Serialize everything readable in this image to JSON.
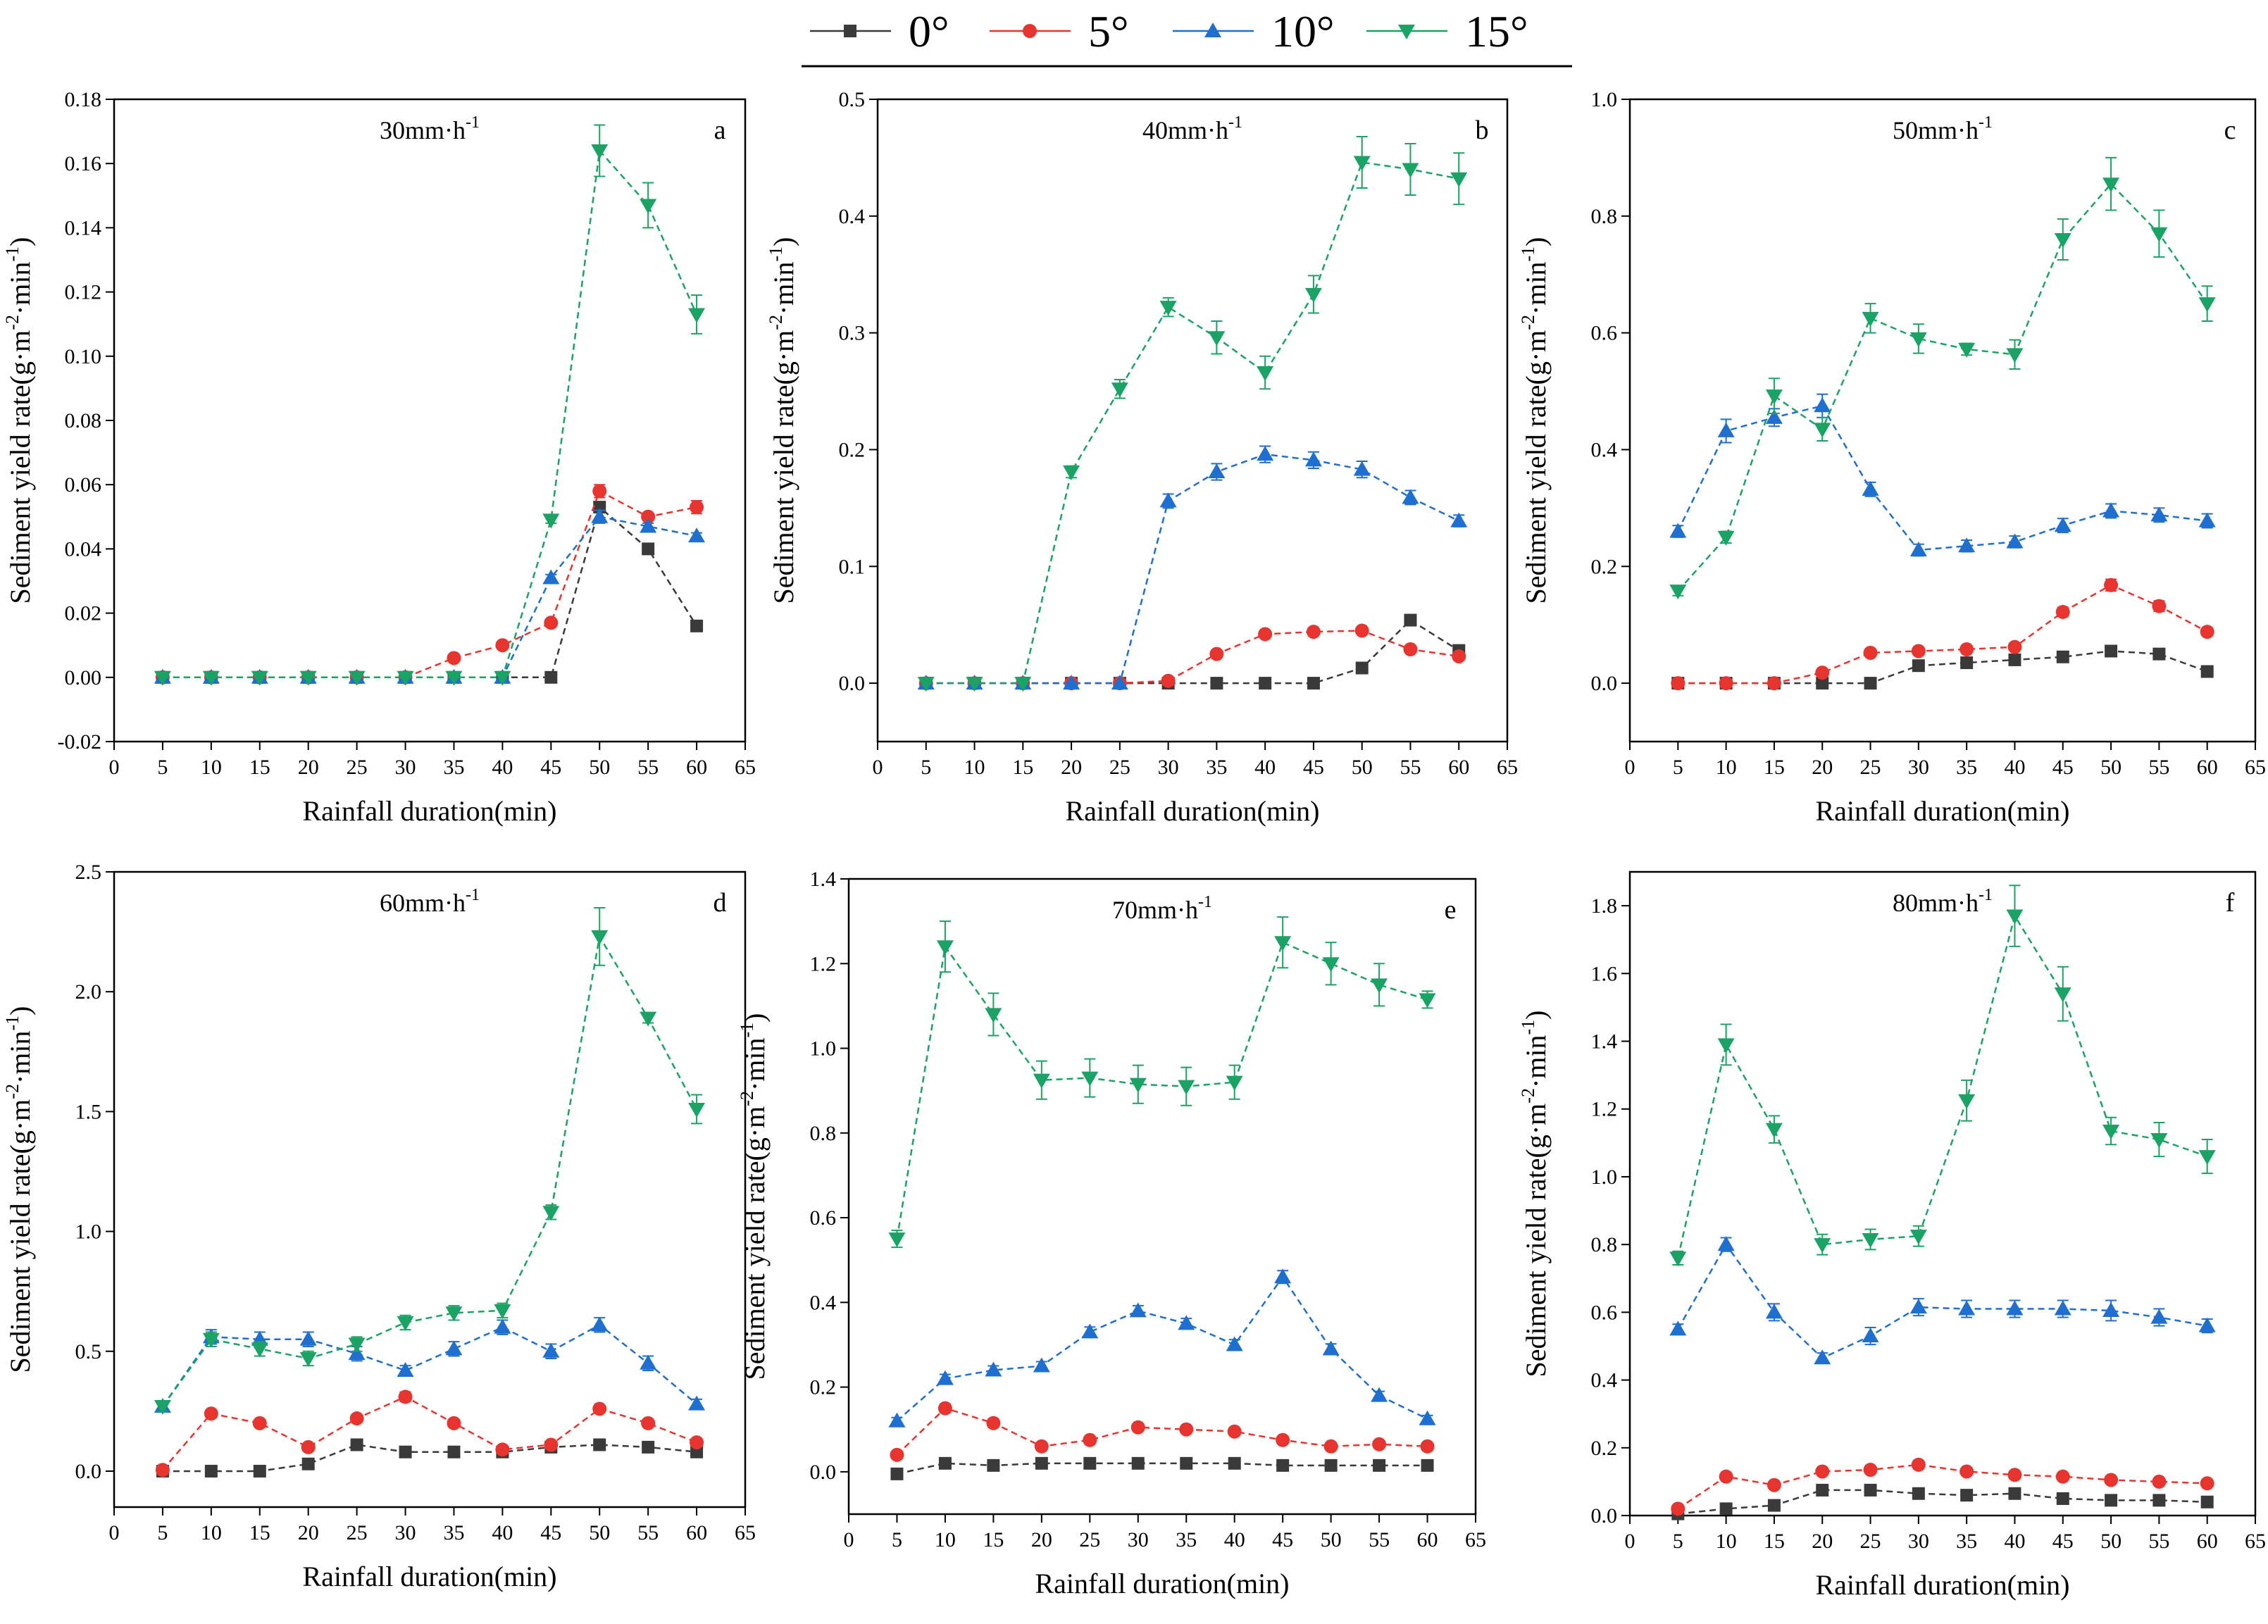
{
  "figure": {
    "legend": {
      "entries": [
        {
          "name": "0°",
          "color": "#3a3a3a",
          "marker": "square"
        },
        {
          "name": "5°",
          "color": "#e8342f",
          "marker": "circle"
        },
        {
          "name": "10°",
          "color": "#1f6fd1",
          "marker": "triangle-up"
        },
        {
          "name": "15°",
          "color": "#1aa364",
          "marker": "triangle-down"
        }
      ]
    }
  },
  "chart_data": [
    {
      "type": "line",
      "panel": "a",
      "title": "30mm·h",
      "title_sup": "-1",
      "xlabel": "Rainfall duration(min)",
      "ylabel": "Sediment yield rate(g·m",
      "ylabel_sup1": "-2",
      "ylabel_mid": "·min",
      "ylabel_sup2": "-1",
      "ylabel_end": ")",
      "xlim": [
        0,
        65
      ],
      "ylim": [
        -0.02,
        0.18
      ],
      "xticks": [
        0,
        5,
        10,
        15,
        20,
        25,
        30,
        35,
        40,
        45,
        50,
        55,
        60,
        65
      ],
      "yticks": [
        -0.02,
        0.0,
        0.02,
        0.04,
        0.06,
        0.08,
        0.1,
        0.12,
        0.14,
        0.16,
        0.18
      ],
      "ytick_labels": [
        "-0.02",
        "0.00",
        "0.02",
        "0.04",
        "0.06",
        "0.08",
        "0.10",
        "0.12",
        "0.14",
        "0.16",
        "0.18"
      ],
      "x": [
        5,
        10,
        15,
        20,
        25,
        30,
        35,
        40,
        45,
        50,
        55,
        60
      ],
      "series": [
        {
          "name": "0°",
          "values": [
            0,
            0,
            0,
            0,
            0,
            0,
            0,
            0,
            0,
            0.053,
            0.04,
            0.016
          ],
          "err": [
            0,
            0,
            0,
            0,
            0,
            0,
            0,
            0,
            0,
            0.001,
            0.001,
            0.001
          ]
        },
        {
          "name": "5°",
          "values": [
            0,
            0,
            0,
            0,
            0,
            0,
            0.006,
            0.01,
            0.017,
            0.058,
            0.05,
            0.053
          ],
          "err": [
            0,
            0,
            0,
            0,
            0,
            0,
            0.001,
            0.001,
            0.001,
            0.002,
            0.001,
            0.002
          ]
        },
        {
          "name": "10°",
          "values": [
            0,
            0,
            0,
            0,
            0,
            0,
            0,
            0,
            0.031,
            0.05,
            0.047,
            0.044
          ],
          "err": [
            0,
            0,
            0,
            0,
            0,
            0,
            0,
            0,
            0.001,
            0.002,
            0.001,
            0.001
          ]
        },
        {
          "name": "15°",
          "values": [
            0,
            0,
            0,
            0,
            0,
            0,
            0,
            0,
            0.049,
            0.164,
            0.147,
            0.113
          ],
          "err": [
            0,
            0,
            0,
            0,
            0,
            0,
            0,
            0,
            0.001,
            0.008,
            0.007,
            0.006
          ]
        }
      ]
    },
    {
      "type": "line",
      "panel": "b",
      "title": "40mm·h",
      "title_sup": "-1",
      "xlabel": "Rainfall duration(min)",
      "ylabel": "Sediment yield rate(g·m",
      "ylabel_sup1": "-2",
      "ylabel_mid": "·min",
      "ylabel_sup2": "-1",
      "ylabel_end": ")",
      "xlim": [
        0,
        65
      ],
      "ylim": [
        -0.05,
        0.5
      ],
      "xticks": [
        0,
        5,
        10,
        15,
        20,
        25,
        30,
        35,
        40,
        45,
        50,
        55,
        60,
        65
      ],
      "yticks": [
        0.0,
        0.1,
        0.2,
        0.3,
        0.4,
        0.5
      ],
      "ytick_labels": [
        "0.0",
        "0.1",
        "0.2",
        "0.3",
        "0.4",
        "0.5"
      ],
      "x": [
        5,
        10,
        15,
        20,
        25,
        30,
        35,
        40,
        45,
        50,
        55,
        60
      ],
      "series": [
        {
          "name": "0°",
          "values": [
            0,
            0,
            0,
            0,
            0,
            0,
            0,
            0,
            0,
            0.013,
            0.054,
            0.028
          ],
          "err": [
            0,
            0,
            0,
            0,
            0,
            0,
            0,
            0,
            0,
            0.002,
            0.003,
            0.002
          ]
        },
        {
          "name": "5°",
          "values": [
            0,
            0,
            0,
            0,
            0,
            0.002,
            0.025,
            0.042,
            0.044,
            0.045,
            0.029,
            0.023
          ],
          "err": [
            0,
            0,
            0,
            0,
            0,
            0,
            0.002,
            0.002,
            0.002,
            0.002,
            0.002,
            0.002
          ]
        },
        {
          "name": "10°",
          "values": [
            0,
            0,
            0,
            0,
            0,
            0.156,
            0.181,
            0.196,
            0.191,
            0.183,
            0.159,
            0.139
          ],
          "err": [
            0,
            0,
            0,
            0,
            0,
            0.006,
            0.007,
            0.007,
            0.007,
            0.007,
            0.006,
            0.005
          ]
        },
        {
          "name": "15°",
          "values": [
            0,
            0,
            0,
            0.181,
            0.252,
            0.322,
            0.296,
            0.266,
            0.333,
            0.446,
            0.44,
            0.432
          ],
          "err": [
            0,
            0,
            0,
            0.005,
            0.008,
            0.008,
            0.014,
            0.014,
            0.016,
            0.022,
            0.022,
            0.022
          ]
        }
      ]
    },
    {
      "type": "line",
      "panel": "c",
      "title": "50mm·h",
      "title_sup": "-1",
      "xlabel": "Rainfall duration(min)",
      "ylabel": "Sediment yield rate(g·m",
      "ylabel_sup1": "-2",
      "ylabel_mid": "·min",
      "ylabel_sup2": "-1",
      "ylabel_end": ")",
      "xlim": [
        0,
        65
      ],
      "ylim": [
        -0.1,
        1.0
      ],
      "xticks": [
        0,
        5,
        10,
        15,
        20,
        25,
        30,
        35,
        40,
        45,
        50,
        55,
        60,
        65
      ],
      "yticks": [
        0.0,
        0.2,
        0.4,
        0.6,
        0.8,
        1.0
      ],
      "ytick_labels": [
        "0.0",
        "0.2",
        "0.4",
        "0.6",
        "0.8",
        "1.0"
      ],
      "x": [
        5,
        10,
        15,
        20,
        25,
        30,
        35,
        40,
        45,
        50,
        55,
        60
      ],
      "series": [
        {
          "name": "0°",
          "values": [
            0,
            0,
            0,
            0,
            0,
            0.03,
            0.035,
            0.04,
            0.045,
            0.055,
            0.05,
            0.02
          ],
          "err": [
            0,
            0,
            0,
            0,
            0,
            0.003,
            0.003,
            0.003,
            0.003,
            0.004,
            0.004,
            0.003
          ]
        },
        {
          "name": "5°",
          "values": [
            0,
            0,
            0,
            0.018,
            0.052,
            0.055,
            0.058,
            0.062,
            0.122,
            0.168,
            0.132,
            0.088
          ],
          "err": [
            0,
            0,
            0,
            0.003,
            0.004,
            0.004,
            0.004,
            0.005,
            0.008,
            0.01,
            0.009,
            0.007
          ]
        },
        {
          "name": "10°",
          "values": [
            0.26,
            0.432,
            0.455,
            0.475,
            0.332,
            0.228,
            0.235,
            0.242,
            0.27,
            0.295,
            0.288,
            0.278
          ],
          "err": [
            0.01,
            0.02,
            0.015,
            0.02,
            0.012,
            0.01,
            0.01,
            0.01,
            0.012,
            0.012,
            0.012,
            0.012
          ]
        },
        {
          "name": "15°",
          "values": [
            0.158,
            0.25,
            0.492,
            0.435,
            0.625,
            0.59,
            0.572,
            0.563,
            0.76,
            0.855,
            0.77,
            0.65
          ],
          "err": [
            0.008,
            0.01,
            0.03,
            0.02,
            0.025,
            0.025,
            0.01,
            0.025,
            0.035,
            0.045,
            0.04,
            0.03
          ]
        }
      ]
    },
    {
      "type": "line",
      "panel": "d",
      "title": "60mm·h",
      "title_sup": "-1",
      "xlabel": "Rainfall duration(min)",
      "ylabel": "Sediment yield rate(g·m",
      "ylabel_sup1": "-2",
      "ylabel_mid": "·min",
      "ylabel_sup2": "-1",
      "ylabel_end": ")",
      "xlim": [
        0,
        65
      ],
      "ylim": [
        -0.15,
        2.5
      ],
      "xticks": [
        0,
        5,
        10,
        15,
        20,
        25,
        30,
        35,
        40,
        45,
        50,
        55,
        60,
        65
      ],
      "yticks": [
        0.0,
        0.5,
        1.0,
        1.5,
        2.0,
        2.5
      ],
      "ytick_labels": [
        "0.0",
        "0.5",
        "1.0",
        "1.5",
        "2.0",
        "2.5"
      ],
      "x": [
        5,
        10,
        15,
        20,
        25,
        30,
        35,
        40,
        45,
        50,
        55,
        60
      ],
      "series": [
        {
          "name": "0°",
          "values": [
            0,
            0,
            0,
            0.03,
            0.11,
            0.08,
            0.08,
            0.08,
            0.1,
            0.11,
            0.1,
            0.08
          ],
          "err": [
            0,
            0,
            0,
            0.005,
            0.01,
            0.01,
            0.01,
            0.01,
            0.01,
            0.01,
            0.01,
            0.01
          ]
        },
        {
          "name": "5°",
          "values": [
            0.005,
            0.24,
            0.2,
            0.1,
            0.22,
            0.31,
            0.2,
            0.09,
            0.11,
            0.26,
            0.2,
            0.12
          ],
          "err": [
            0.005,
            0.015,
            0.015,
            0.01,
            0.015,
            0.02,
            0.015,
            0.01,
            0.01,
            0.015,
            0.015,
            0.01
          ]
        },
        {
          "name": "10°",
          "values": [
            0.27,
            0.56,
            0.55,
            0.55,
            0.49,
            0.42,
            0.51,
            0.6,
            0.5,
            0.61,
            0.45,
            0.28
          ],
          "err": [
            0.02,
            0.03,
            0.03,
            0.03,
            0.03,
            0.02,
            0.03,
            0.03,
            0.03,
            0.03,
            0.03,
            0.02
          ]
        },
        {
          "name": "15°",
          "values": [
            0.27,
            0.55,
            0.51,
            0.47,
            0.53,
            0.62,
            0.66,
            0.67,
            1.08,
            2.23,
            1.89,
            1.51
          ],
          "err": [
            0.02,
            0.03,
            0.03,
            0.03,
            0.03,
            0.03,
            0.03,
            0.03,
            0.03,
            0.12,
            0.02,
            0.06
          ]
        }
      ]
    },
    {
      "type": "line",
      "panel": "e",
      "title": "70mm·h",
      "title_sup": "-1",
      "xlabel": "Rainfall duration(min)",
      "ylabel": "Sediment yield rate(g·m",
      "ylabel_sup1": "-2",
      "ylabel_mid": "·min",
      "ylabel_sup2": "-1",
      "ylabel_end": ")",
      "xlim": [
        0,
        65
      ],
      "ylim": [
        -0.1,
        1.4
      ],
      "xticks": [
        0,
        5,
        10,
        15,
        20,
        25,
        30,
        35,
        40,
        45,
        50,
        55,
        60,
        65
      ],
      "yticks": [
        0.0,
        0.2,
        0.4,
        0.6,
        0.8,
        1.0,
        1.2,
        1.4
      ],
      "ytick_labels": [
        "0.0",
        "0.2",
        "0.4",
        "0.6",
        "0.8",
        "1.0",
        "1.2",
        "1.4"
      ],
      "x": [
        5,
        10,
        15,
        20,
        25,
        30,
        35,
        40,
        45,
        50,
        55,
        60
      ],
      "series": [
        {
          "name": "0°",
          "values": [
            -0.005,
            0.02,
            0.015,
            0.02,
            0.02,
            0.02,
            0.02,
            0.02,
            0.015,
            0.015,
            0.015,
            0.015
          ],
          "err": [
            0.003,
            0.002,
            0.002,
            0.002,
            0.002,
            0.002,
            0.002,
            0.002,
            0.002,
            0.002,
            0.002,
            0.002
          ]
        },
        {
          "name": "5°",
          "values": [
            0.04,
            0.15,
            0.115,
            0.06,
            0.075,
            0.105,
            0.1,
            0.095,
            0.075,
            0.06,
            0.065,
            0.06
          ],
          "err": [
            0.005,
            0.01,
            0.01,
            0.008,
            0.008,
            0.008,
            0.008,
            0.008,
            0.008,
            0.008,
            0.008,
            0.008
          ]
        },
        {
          "name": "10°",
          "values": [
            0.12,
            0.22,
            0.24,
            0.25,
            0.33,
            0.38,
            0.35,
            0.3,
            0.46,
            0.29,
            0.18,
            0.125
          ],
          "err": [
            0.008,
            0.01,
            0.01,
            0.01,
            0.012,
            0.012,
            0.012,
            0.012,
            0.015,
            0.012,
            0.01,
            0.008
          ]
        },
        {
          "name": "15°",
          "values": [
            0.55,
            1.24,
            1.08,
            0.925,
            0.93,
            0.915,
            0.91,
            0.92,
            1.25,
            1.2,
            1.15,
            1.115
          ],
          "err": [
            0.02,
            0.06,
            0.05,
            0.045,
            0.045,
            0.045,
            0.045,
            0.04,
            0.06,
            0.05,
            0.05,
            0.02
          ]
        }
      ]
    },
    {
      "type": "line",
      "panel": "f",
      "title": "80mm·h",
      "title_sup": "-1",
      "xlabel": "Rainfall duration(min)",
      "ylabel": "Sediment yield rate(g·m",
      "ylabel_sup1": "-2",
      "ylabel_mid": "·min",
      "ylabel_sup2": "-1",
      "ylabel_end": ")",
      "xlim": [
        0,
        65
      ],
      "ylim": [
        0.0,
        1.9
      ],
      "xticks": [
        0,
        5,
        10,
        15,
        20,
        25,
        30,
        35,
        40,
        45,
        50,
        55,
        60,
        65
      ],
      "yticks": [
        0.0,
        0.2,
        0.4,
        0.6,
        0.8,
        1.0,
        1.2,
        1.4,
        1.6,
        1.8
      ],
      "ytick_labels": [
        "0.0",
        "0.2",
        "0.4",
        "0.6",
        "0.8",
        "1.0",
        "1.2",
        "1.4",
        "1.6",
        "1.8"
      ],
      "x": [
        5,
        10,
        15,
        20,
        25,
        30,
        35,
        40,
        45,
        50,
        55,
        60
      ],
      "series": [
        {
          "name": "0°",
          "values": [
            0.005,
            0.02,
            0.03,
            0.075,
            0.075,
            0.065,
            0.06,
            0.065,
            0.05,
            0.045,
            0.045,
            0.04
          ],
          "err": [
            0.003,
            0.005,
            0.005,
            0.008,
            0.008,
            0.008,
            0.008,
            0.008,
            0.006,
            0.006,
            0.006,
            0.006
          ]
        },
        {
          "name": "5°",
          "values": [
            0.02,
            0.115,
            0.09,
            0.13,
            0.135,
            0.15,
            0.13,
            0.12,
            0.115,
            0.105,
            0.1,
            0.095
          ],
          "err": [
            0.005,
            0.01,
            0.01,
            0.01,
            0.01,
            0.012,
            0.01,
            0.01,
            0.01,
            0.01,
            0.01,
            0.008
          ]
        },
        {
          "name": "10°",
          "values": [
            0.55,
            0.8,
            0.6,
            0.465,
            0.53,
            0.615,
            0.61,
            0.61,
            0.61,
            0.605,
            0.585,
            0.56
          ],
          "err": [
            0.015,
            0.02,
            0.025,
            0.015,
            0.025,
            0.025,
            0.025,
            0.025,
            0.025,
            0.03,
            0.025,
            0.02
          ]
        },
        {
          "name": "15°",
          "values": [
            0.76,
            1.39,
            1.14,
            0.8,
            0.815,
            0.825,
            1.225,
            1.77,
            1.54,
            1.135,
            1.11,
            1.06
          ],
          "err": [
            0.02,
            0.06,
            0.04,
            0.03,
            0.03,
            0.03,
            0.06,
            0.09,
            0.08,
            0.04,
            0.05,
            0.05
          ]
        }
      ]
    }
  ]
}
